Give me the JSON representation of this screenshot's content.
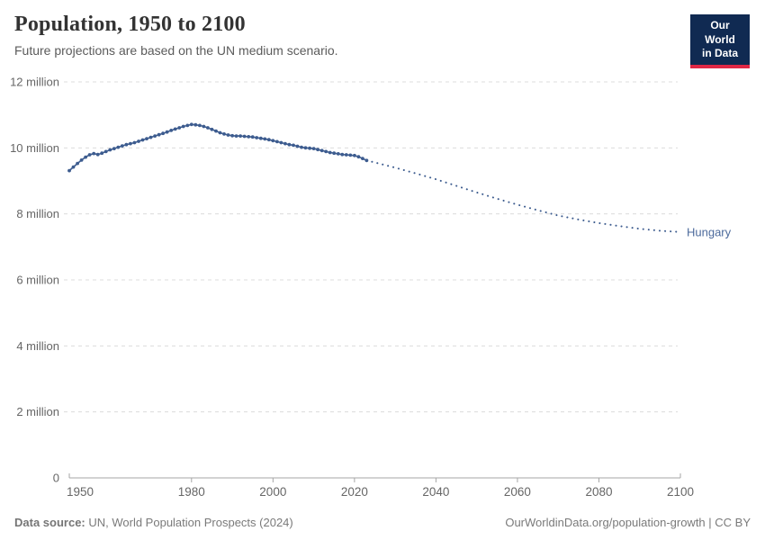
{
  "header": {
    "title": "Population, 1950 to 2100",
    "subtitle": "Future projections are based on the UN medium scenario.",
    "logo": {
      "line1": "Our World",
      "line2": "in Data"
    }
  },
  "footer": {
    "source_label": "Data source:",
    "source_text": " UN, World Population Prospects (2024)",
    "link_text": "OurWorldinData.org/population-growth | CC BY"
  },
  "colors": {
    "series_line": "#3d5c8f",
    "entity_label": "#4c6a9c",
    "grid": "#dcdcdc",
    "axis": "#a6a6a6",
    "tick_label": "#666666",
    "logo_bg": "#102a52",
    "logo_accent": "#e02745"
  },
  "chart_data": {
    "type": "line",
    "title": "Population, 1950 to 2100",
    "subtitle": "Future projections are based on the UN medium scenario.",
    "entity": "Hungary",
    "unit": "people",
    "value_scale": "millions",
    "xlim": [
      1950,
      2100
    ],
    "ylim_millions": [
      0,
      12
    ],
    "grid": "horizontal-dashed",
    "legend_position": "end-of-line entity label",
    "xticks": [
      {
        "value": 1950,
        "label": "1950"
      },
      {
        "value": 1980,
        "label": "1980"
      },
      {
        "value": 2000,
        "label": "2000"
      },
      {
        "value": 2020,
        "label": "2020"
      },
      {
        "value": 2040,
        "label": "2040"
      },
      {
        "value": 2060,
        "label": "2060"
      },
      {
        "value": 2080,
        "label": "2080"
      },
      {
        "value": 2100,
        "label": "2100"
      }
    ],
    "yticks": [
      {
        "value": 0,
        "label": "0"
      },
      {
        "value": 2,
        "label": "2 million"
      },
      {
        "value": 4,
        "label": "4 million"
      },
      {
        "value": 6,
        "label": "6 million"
      },
      {
        "value": 8,
        "label": "8 million"
      },
      {
        "value": 10,
        "label": "10 million"
      },
      {
        "value": 12,
        "label": "12 million"
      }
    ],
    "series": [
      {
        "name": "Hungary (historical estimates)",
        "style": "solid-with-markers",
        "start_year": 1950,
        "step_years": 1,
        "values_millions": [
          9.31,
          9.42,
          9.53,
          9.63,
          9.72,
          9.79,
          9.83,
          9.8,
          9.84,
          9.89,
          9.94,
          9.98,
          10.02,
          10.06,
          10.1,
          10.13,
          10.16,
          10.2,
          10.24,
          10.28,
          10.32,
          10.36,
          10.4,
          10.44,
          10.48,
          10.53,
          10.57,
          10.61,
          10.65,
          10.68,
          10.71,
          10.7,
          10.68,
          10.65,
          10.61,
          10.56,
          10.51,
          10.46,
          10.42,
          10.39,
          10.37,
          10.36,
          10.36,
          10.35,
          10.34,
          10.33,
          10.31,
          10.29,
          10.27,
          10.25,
          10.22,
          10.19,
          10.16,
          10.13,
          10.1,
          10.08,
          10.05,
          10.02,
          10.0,
          9.99,
          9.98,
          9.95,
          9.92,
          9.89,
          9.86,
          9.84,
          9.82,
          9.8,
          9.79,
          9.78,
          9.77,
          9.73,
          9.68,
          9.62
        ]
      },
      {
        "name": "Hungary (UN medium projection)",
        "style": "dotted",
        "points_year_millions": [
          [
            2023,
            9.62
          ],
          [
            2025,
            9.56
          ],
          [
            2030,
            9.4
          ],
          [
            2035,
            9.23
          ],
          [
            2040,
            9.05
          ],
          [
            2045,
            8.85
          ],
          [
            2050,
            8.65
          ],
          [
            2055,
            8.46
          ],
          [
            2060,
            8.28
          ],
          [
            2065,
            8.11
          ],
          [
            2070,
            7.95
          ],
          [
            2075,
            7.83
          ],
          [
            2080,
            7.72
          ],
          [
            2085,
            7.63
          ],
          [
            2090,
            7.55
          ],
          [
            2095,
            7.49
          ],
          [
            2100,
            7.45
          ]
        ]
      }
    ]
  }
}
